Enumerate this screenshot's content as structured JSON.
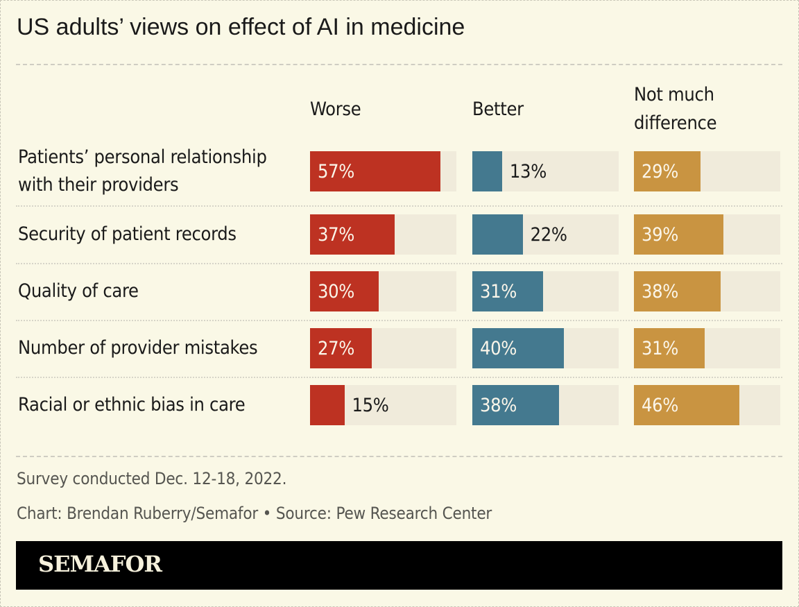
{
  "chart_data": {
    "type": "bar",
    "title": "US adults’ views on effect of AI in medicine",
    "categories": [
      "Patients’ personal relationship with their providers",
      "Security of patient records",
      "Quality of care",
      "Number of provider mistakes",
      "Racial or ethnic bias in care"
    ],
    "series": [
      {
        "name": "Worse",
        "color": "#bd3222",
        "values": [
          57,
          37,
          30,
          27,
          15
        ],
        "labels": [
          "57%",
          "37%",
          "30%",
          "27%",
          "15%"
        ]
      },
      {
        "name": "Better",
        "color": "#44798f",
        "values": [
          13,
          22,
          31,
          40,
          38
        ],
        "labels": [
          "13%",
          "22%",
          "31%",
          "40%",
          "38%"
        ]
      },
      {
        "name": "Not much difference",
        "color": "#c99441",
        "values": [
          29,
          39,
          38,
          31,
          46
        ],
        "labels": [
          "29%",
          "39%",
          "38%",
          "31%",
          "46%"
        ]
      }
    ],
    "unit": "%",
    "grid": false
  },
  "row_label_lines": [
    [
      "Patients’ personal relationship",
      "with their providers"
    ],
    [
      "Security of patient records"
    ],
    [
      "Quality of care"
    ],
    [
      "Number of provider mistakes"
    ],
    [
      "Racial or ethnic bias in care"
    ]
  ],
  "headers": [
    [
      "Worse"
    ],
    [
      "Better"
    ],
    [
      "Not much",
      "difference"
    ]
  ],
  "footer": {
    "note": "Survey conducted Dec. 12-18, 2022.",
    "credit": "Chart: Brendan Ruberry/Semafor • Source: Pew Research Center"
  },
  "brand": "SEMAFOR"
}
